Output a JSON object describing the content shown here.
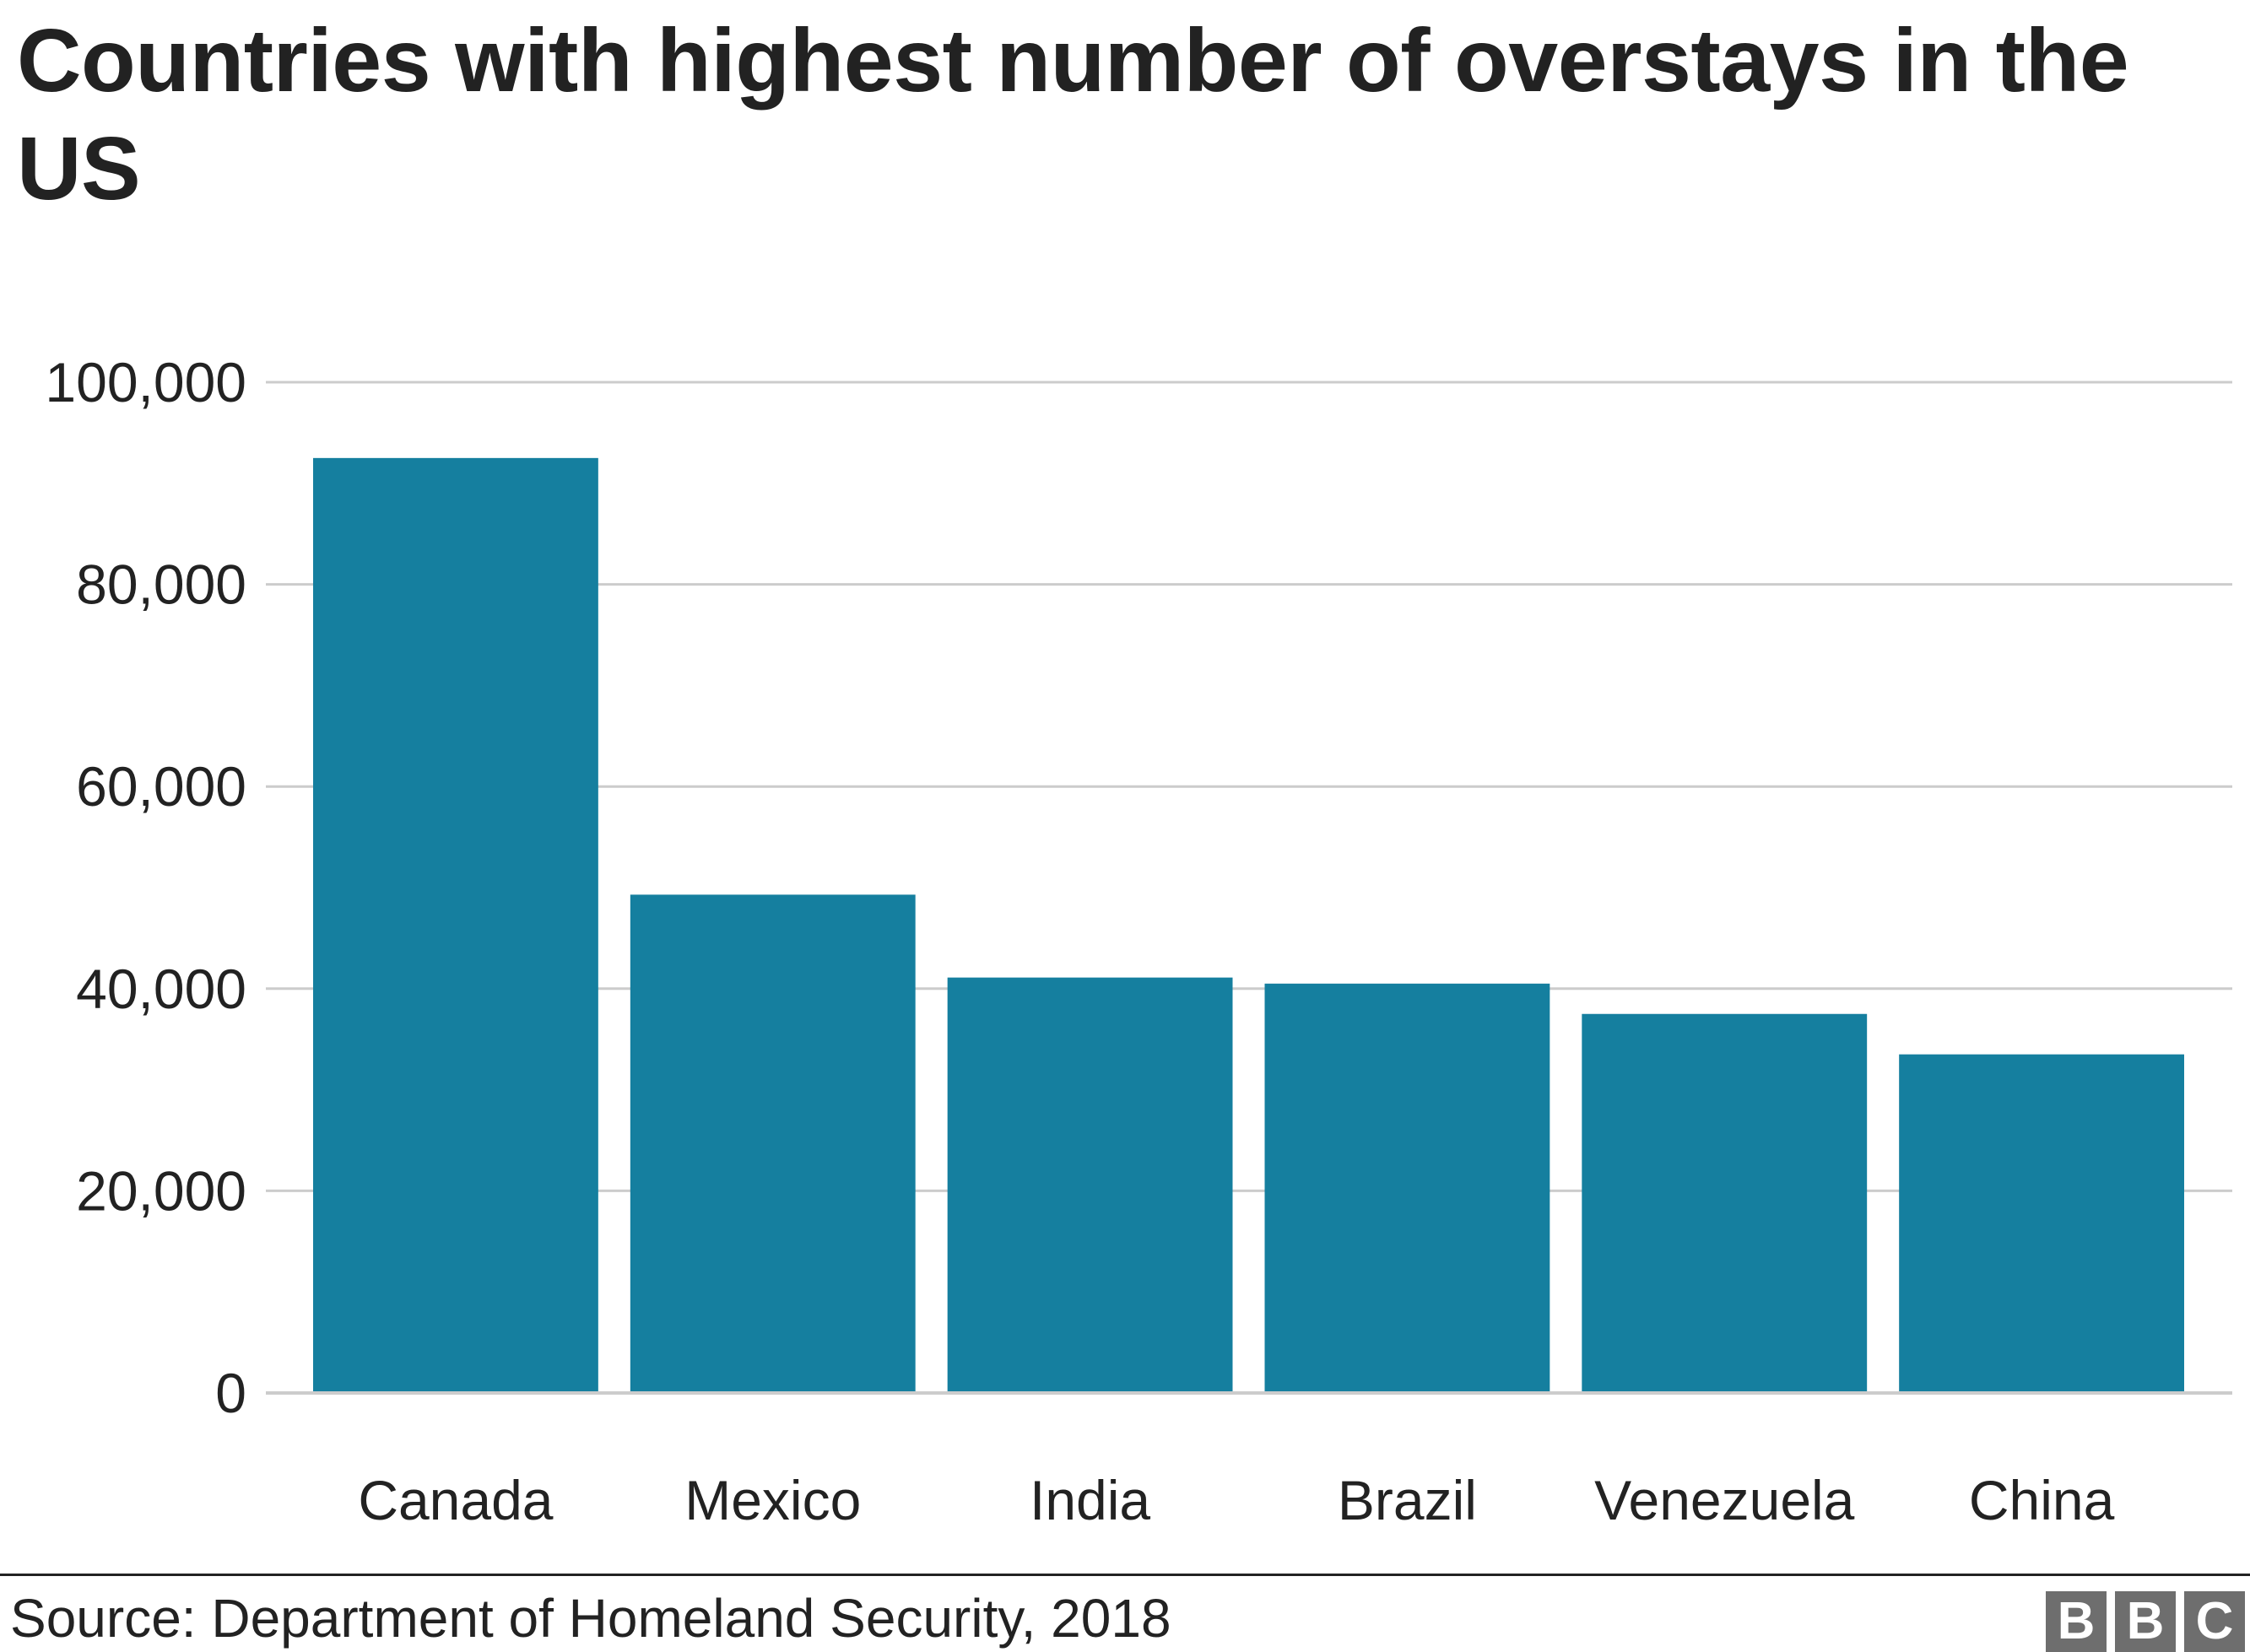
{
  "chart_data": {
    "type": "bar",
    "title": "Countries with highest number of overstays in the US",
    "xlabel": "",
    "ylabel": "",
    "categories": [
      "Canada",
      "Mexico",
      "India",
      "Brazil",
      "Venezuela",
      "China"
    ],
    "values": [
      92500,
      49300,
      41100,
      40500,
      37500,
      33500
    ],
    "ylim": [
      0,
      100000
    ],
    "yticks": [
      0,
      20000,
      40000,
      60000,
      80000,
      100000
    ],
    "ytick_labels": [
      "0",
      "20,000",
      "40,000",
      "60,000",
      "80,000",
      "100,000"
    ],
    "grid": true,
    "legend": "none",
    "bar_color": "#157f9f",
    "grid_color": "#cccccc"
  },
  "footer": {
    "source": "Source: Department of Homeland Security, 2018",
    "logo_letters": [
      "B",
      "B",
      "C"
    ],
    "logo_color": "#6e6e6e"
  }
}
